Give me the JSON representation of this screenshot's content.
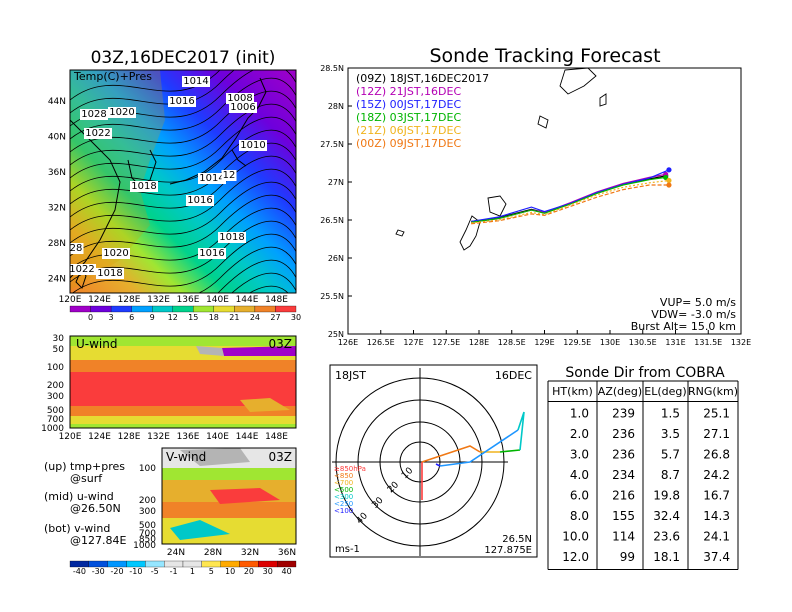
{
  "map_panel": {
    "title": "03Z,16DEC2017 (init)",
    "label": "Temp(C)+Pres",
    "lat_labels": [
      "44N",
      "40N",
      "36N",
      "32N",
      "28N",
      "24N"
    ],
    "lon_labels": [
      "120E",
      "124E",
      "128E",
      "132E",
      "136E",
      "140E",
      "144E",
      "148E"
    ],
    "isobar_labels": [
      "1014",
      "1016",
      "1008",
      "1006",
      "1028",
      "1020",
      "1022",
      "1010",
      "1014",
      "12",
      "1018",
      "1016",
      "1018",
      "1020",
      "1016",
      "1022",
      "1018",
      "28"
    ],
    "colorbar_labels": [
      "0",
      "3",
      "6",
      "9",
      "12",
      "15",
      "18",
      "21",
      "24",
      "27",
      "30"
    ],
    "colorbar_colors": [
      "#a000c8",
      "#6e00dc",
      "#1e3cff",
      "#00a0ff",
      "#00c8c8",
      "#00d28c",
      "#a0e632",
      "#e6dc32",
      "#e6af2d",
      "#f08228",
      "#fa3c3c"
    ]
  },
  "uwind_panel": {
    "label": "U-wind",
    "time": "03Z",
    "y_labels": [
      "30",
      "50",
      "100",
      "200",
      "300",
      "500",
      "700",
      "1000"
    ],
    "x_labels": [
      "120E",
      "124E",
      "128E",
      "132E",
      "136E",
      "140E",
      "144E",
      "148E"
    ]
  },
  "vwind_panel": {
    "label": "V-wind",
    "time": "03Z",
    "y_labels": [
      "100",
      "200",
      "300",
      "500",
      "700",
      "850",
      "1000"
    ],
    "x_labels": [
      "24N",
      "28N",
      "32N",
      "36N"
    ],
    "colorbar_labels": [
      "-40",
      "-30",
      "-20",
      "-10",
      "-5",
      "-1",
      "1",
      "5",
      "10",
      "20",
      "30",
      "40"
    ],
    "colorbar_colors": [
      "#0028a0",
      "#0050dc",
      "#0096ff",
      "#00c8ff",
      "#96e6ff",
      "#e6e6e6",
      "#e6e6e6",
      "#ffe650",
      "#ffaa00",
      "#ff5a00",
      "#dc0000",
      "#a00000"
    ]
  },
  "legend_notes": {
    "up1": "(up) tmp+pres",
    "up2": "@surf",
    "mid1": "(mid) u-wind",
    "mid2": "@26.50N",
    "bot1": "(bot) v-wind",
    "bot2": "@127.84E"
  },
  "tracking": {
    "title": "Sonde Tracking Forecast",
    "y_labels": [
      "28.5N",
      "28N",
      "27.5N",
      "27N",
      "26.5N",
      "26N",
      "25.5N",
      "25N"
    ],
    "x_labels": [
      "126E",
      "126.5E",
      "127E",
      "127.5E",
      "128E",
      "128.5E",
      "129E",
      "129.5E",
      "130E",
      "130.5E",
      "131E",
      "131.5E",
      "132E"
    ],
    "legend": [
      {
        "text": "(09Z)  18JST,16DEC2017",
        "color": "#000000"
      },
      {
        "text": "(12Z)  21JST,16DEC",
        "color": "#b400b4"
      },
      {
        "text": "(15Z)  00JST,17DEC",
        "color": "#1e1eff"
      },
      {
        "text": "(18Z)  03JST,17DEC",
        "color": "#00b400"
      },
      {
        "text": "(21Z)  06JST,17DEC",
        "color": "#f0b41e"
      },
      {
        "text": "(00Z)  09JST,17DEC",
        "color": "#f07814"
      }
    ],
    "params": {
      "vup": "VUP=  5.0  m/s",
      "vdw": "VDW= -3.0  m/s",
      "burst": "Burst Alt=  15.0  km"
    }
  },
  "chart_data": {
    "type": "line",
    "title": "Sonde Tracking Forecast",
    "xlabel": "",
    "ylabel": "",
    "xlim": [
      126,
      132
    ],
    "ylim": [
      25,
      28.5
    ],
    "series": [
      {
        "name": "(09Z) 18JST,16DEC2017",
        "color": "#000000",
        "x": [
          127.88,
          128.3,
          128.8,
          129.0,
          129.4,
          129.8,
          130.2,
          130.6,
          130.85
        ],
        "y": [
          26.48,
          26.53,
          26.64,
          26.6,
          26.72,
          26.86,
          26.97,
          27.04,
          27.08
        ]
      },
      {
        "name": "(12Z) 21JST,16DEC",
        "color": "#b400b4",
        "x": [
          127.88,
          128.3,
          128.8,
          129.0,
          129.4,
          129.8,
          130.2,
          130.6,
          130.85
        ],
        "y": [
          26.47,
          26.52,
          26.63,
          26.6,
          26.73,
          26.87,
          26.98,
          27.06,
          27.1
        ]
      },
      {
        "name": "(15Z) 00JST,17DEC",
        "color": "#1e1eff",
        "x": [
          127.88,
          128.3,
          128.8,
          129.0,
          129.4,
          129.8,
          130.2,
          130.6,
          130.9
        ],
        "y": [
          26.48,
          26.54,
          26.67,
          26.61,
          26.72,
          26.86,
          26.97,
          27.05,
          27.16
        ]
      },
      {
        "name": "(18Z) 03JST,17DEC",
        "color": "#00b400",
        "x": [
          127.88,
          128.3,
          128.8,
          129.0,
          129.4,
          129.8,
          130.2,
          130.6,
          130.85
        ],
        "y": [
          26.47,
          26.52,
          26.63,
          26.59,
          26.71,
          26.85,
          26.96,
          27.03,
          27.06
        ]
      },
      {
        "name": "(21Z) 06JST,17DEC",
        "color": "#f0b41e",
        "x": [
          127.88,
          128.3,
          128.8,
          129.0,
          129.4,
          129.8,
          130.2,
          130.6,
          130.9
        ],
        "y": [
          26.46,
          26.5,
          26.6,
          26.57,
          26.7,
          26.83,
          26.93,
          26.99,
          27.02
        ]
      },
      {
        "name": "(00Z) 09JST,17DEC",
        "color": "#f07814",
        "x": [
          127.88,
          128.3,
          128.8,
          129.0,
          129.4,
          129.8,
          130.2,
          130.6,
          130.9
        ],
        "y": [
          26.45,
          26.49,
          26.58,
          26.56,
          26.68,
          26.8,
          26.9,
          26.96,
          26.96
        ]
      }
    ]
  },
  "polar": {
    "jst": "18JST",
    "date": "16DEC",
    "units": "ms-1",
    "lat": "26.5N",
    "lon": "127.875E",
    "ring_labels": [
      "10",
      "20",
      "30",
      "40"
    ],
    "levels": [
      {
        "text": "≥850hPa",
        "color": "#ff3c3c"
      },
      {
        "text": "<850",
        "color": "#f07814"
      },
      {
        "text": "<700",
        "color": "#f0b41e"
      },
      {
        "text": "<500",
        "color": "#00b400"
      },
      {
        "text": "<300",
        "color": "#00c8c8"
      },
      {
        "text": "<250",
        "color": "#1e96ff"
      },
      {
        "text": "<100",
        "color": "#1e1eff"
      }
    ]
  },
  "sonde_table": {
    "title": "Sonde Dir from COBRA",
    "headers": [
      "HT(km)",
      "AZ(deg)",
      "EL(deg)",
      "RNG(km)"
    ],
    "rows": [
      [
        "1.0",
        "239",
        "1.5",
        "25.1"
      ],
      [
        "2.0",
        "236",
        "3.5",
        "27.1"
      ],
      [
        "3.0",
        "236",
        "5.7",
        "26.8"
      ],
      [
        "4.0",
        "234",
        "8.7",
        "24.2"
      ],
      [
        "6.0",
        "216",
        "19.8",
        "16.7"
      ],
      [
        "8.0",
        "155",
        "32.4",
        "14.3"
      ],
      [
        "10.0",
        "114",
        "23.6",
        "24.1"
      ],
      [
        "12.0",
        "99",
        "18.1",
        "37.4"
      ]
    ]
  }
}
